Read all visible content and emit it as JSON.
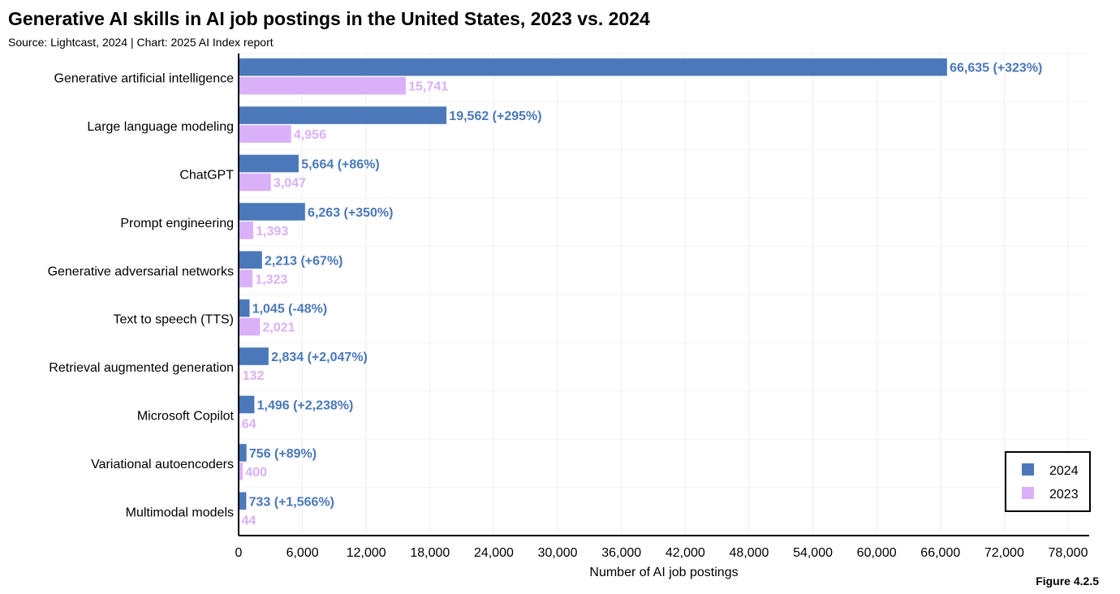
{
  "chart_data": {
    "type": "bar",
    "orientation": "horizontal",
    "title": "Generative AI skills in AI job postings in the United States, 2023 vs. 2024",
    "subtitle": "Source: Lightcast, 2024 | Chart: 2025 AI Index report",
    "xlabel": "Number of AI job postings",
    "ylabel": "",
    "xlim": [
      0,
      78000
    ],
    "xticks": [
      0,
      6000,
      12000,
      18000,
      24000,
      30000,
      36000,
      42000,
      48000,
      54000,
      60000,
      66000,
      72000,
      78000
    ],
    "xtick_labels": [
      "0",
      "6,000",
      "12,000",
      "18,000",
      "24,000",
      "30,000",
      "36,000",
      "42,000",
      "48,000",
      "54,000",
      "60,000",
      "66,000",
      "72,000",
      "78,000"
    ],
    "grid": true,
    "legend_position": "bottom-right",
    "categories": [
      "Generative artificial intelligence",
      "Large language modeling",
      "ChatGPT",
      "Prompt engineering",
      "Generative adversarial networks",
      "Text to speech (TTS)",
      "Retrieval augmented generation",
      "Microsoft Copilot",
      "Variational autoencoders",
      "Multimodal models"
    ],
    "series": [
      {
        "name": "2024",
        "color": "#4a78b8",
        "values": [
          66635,
          19562,
          5664,
          6263,
          2213,
          1045,
          2834,
          1496,
          756,
          733
        ],
        "labels": [
          "66,635 (+323%)",
          "19,562 (+295%)",
          "5,664 (+86%)",
          "6,263 (+350%)",
          "2,213 (+67%)",
          "1,045 (-48%)",
          "2,834 (+2,047%)",
          "1,496 (+2,238%)",
          "756 (+89%)",
          "733 (+1,566%)"
        ]
      },
      {
        "name": "2023",
        "color": "#dab0f8",
        "values": [
          15741,
          4956,
          3047,
          1393,
          1323,
          2021,
          132,
          64,
          400,
          44
        ],
        "labels": [
          "15,741",
          "4,956",
          "3,047",
          "1,393",
          "1,323",
          "2,021",
          "132",
          "64",
          "400",
          "44"
        ]
      }
    ]
  },
  "figure_label": "Figure 4.2.5"
}
